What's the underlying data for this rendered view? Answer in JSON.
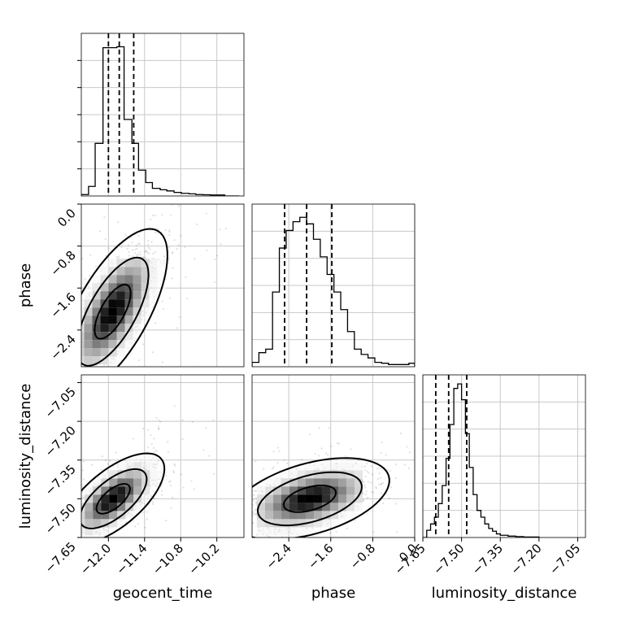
{
  "chart_data": {
    "type": "corner",
    "grid": true,
    "parameters": [
      {
        "key": "geocent_time",
        "label": "geocent_time",
        "range": [
          -12.45,
          -9.75
        ],
        "ticks": [
          -12.0,
          -11.4,
          -10.8,
          -10.2
        ],
        "tick_labels": [
          "−12.0",
          "−11.4",
          "−10.8",
          "−10.2"
        ],
        "quantiles": [
          -12.0,
          -11.82,
          -11.58
        ],
        "histogram": {
          "bin_edges": [
            -12.45,
            -12.33,
            -12.22,
            -12.09,
            -11.98,
            -11.86,
            -11.74,
            -11.61,
            -11.5,
            -11.38,
            -11.27,
            -11.14,
            -11.03,
            -10.91,
            -10.79,
            -10.66,
            -10.55,
            -10.43,
            -10.31,
            -10.19,
            -10.07,
            -9.95,
            -9.83
          ],
          "counts": [
            0.3,
            2.0,
            11.0,
            31.0,
            31.0,
            31.2,
            16.0,
            11.0,
            5.4,
            2.8,
            1.6,
            1.3,
            1.05,
            0.75,
            0.55,
            0.45,
            0.3,
            0.25,
            0.2,
            0.2,
            0.0,
            0.0
          ],
          "ylim": [
            0,
            34
          ]
        }
      },
      {
        "key": "phase",
        "label": "phase",
        "range": [
          -3.1,
          0.0
        ],
        "ticks": [
          -2.4,
          -1.6,
          -0.8,
          0.0
        ],
        "tick_labels": [
          "−2.4",
          "−1.6",
          "−0.8",
          "0.0"
        ],
        "quantiles": [
          -2.48,
          -2.06,
          -1.58
        ],
        "histogram": {
          "bin_edges": [
            -3.1,
            -2.97,
            -2.84,
            -2.71,
            -2.58,
            -2.45,
            -2.32,
            -2.19,
            -2.06,
            -1.93,
            -1.8,
            -1.67,
            -1.54,
            -1.41,
            -1.28,
            -1.15,
            -1.02,
            -0.89,
            -0.76,
            -0.63,
            -0.5,
            -0.37,
            -0.24,
            -0.11,
            0.0
          ],
          "counts": [
            1.0,
            3.2,
            4.0,
            17.0,
            27.0,
            31.0,
            33.0,
            34.0,
            32.5,
            29.0,
            25.0,
            21.0,
            17.0,
            13.0,
            8.0,
            4.0,
            2.8,
            2.0,
            1.0,
            0.8,
            0.5,
            0.5,
            0.5,
            0.8
          ],
          "ylim": [
            0,
            37
          ]
        }
      },
      {
        "key": "luminosity_distance",
        "label": "luminosity_distance",
        "range": [
          -7.65,
          -7.02
        ],
        "ticks": [
          -7.65,
          -7.5,
          -7.35,
          -7.2,
          -7.05
        ],
        "tick_labels": [
          "−7.65",
          "−7.50",
          "−7.35",
          "−7.20",
          "−7.05"
        ],
        "quantiles": [
          -7.6,
          -7.55,
          -7.48
        ],
        "histogram": {
          "bin_edges": [
            -7.65,
            -7.635,
            -7.62,
            -7.605,
            -7.59,
            -7.575,
            -7.56,
            -7.545,
            -7.53,
            -7.515,
            -7.5,
            -7.485,
            -7.47,
            -7.455,
            -7.44,
            -7.425,
            -7.41,
            -7.395,
            -7.38,
            -7.365,
            -7.35,
            -7.32,
            -7.29,
            -7.26,
            -7.23,
            -7.2
          ],
          "counts": [
            0.0,
            1.6,
            3.0,
            4.5,
            7.5,
            11.5,
            17.5,
            25.0,
            33.0,
            34.0,
            30.5,
            23.0,
            15.5,
            9.5,
            6.0,
            4.5,
            3.0,
            2.0,
            1.4,
            0.8,
            0.5,
            0.3,
            0.2,
            0.1,
            0.1
          ],
          "ylim": [
            0,
            36
          ]
        }
      }
    ],
    "pairs": [
      {
        "x": "geocent_time",
        "y": "phase",
        "mean": [
          -11.93,
          -2.05
        ],
        "std": [
          0.3,
          0.52
        ],
        "corr": 0.68,
        "contour_levels": [
          0.39,
          0.86,
          0.99
        ]
      },
      {
        "x": "geocent_time",
        "y": "luminosity_distance",
        "mean": [
          -11.92,
          -7.5
        ],
        "std": [
          0.28,
          0.058
        ],
        "corr": 0.66,
        "contour_levels": [
          0.39,
          0.86,
          0.99
        ]
      },
      {
        "x": "phase",
        "y": "luminosity_distance",
        "mean": [
          -2.0,
          -7.5
        ],
        "std": [
          0.5,
          0.052
        ],
        "corr": 0.45,
        "contour_levels": [
          0.39,
          0.86,
          0.99
        ]
      }
    ]
  }
}
